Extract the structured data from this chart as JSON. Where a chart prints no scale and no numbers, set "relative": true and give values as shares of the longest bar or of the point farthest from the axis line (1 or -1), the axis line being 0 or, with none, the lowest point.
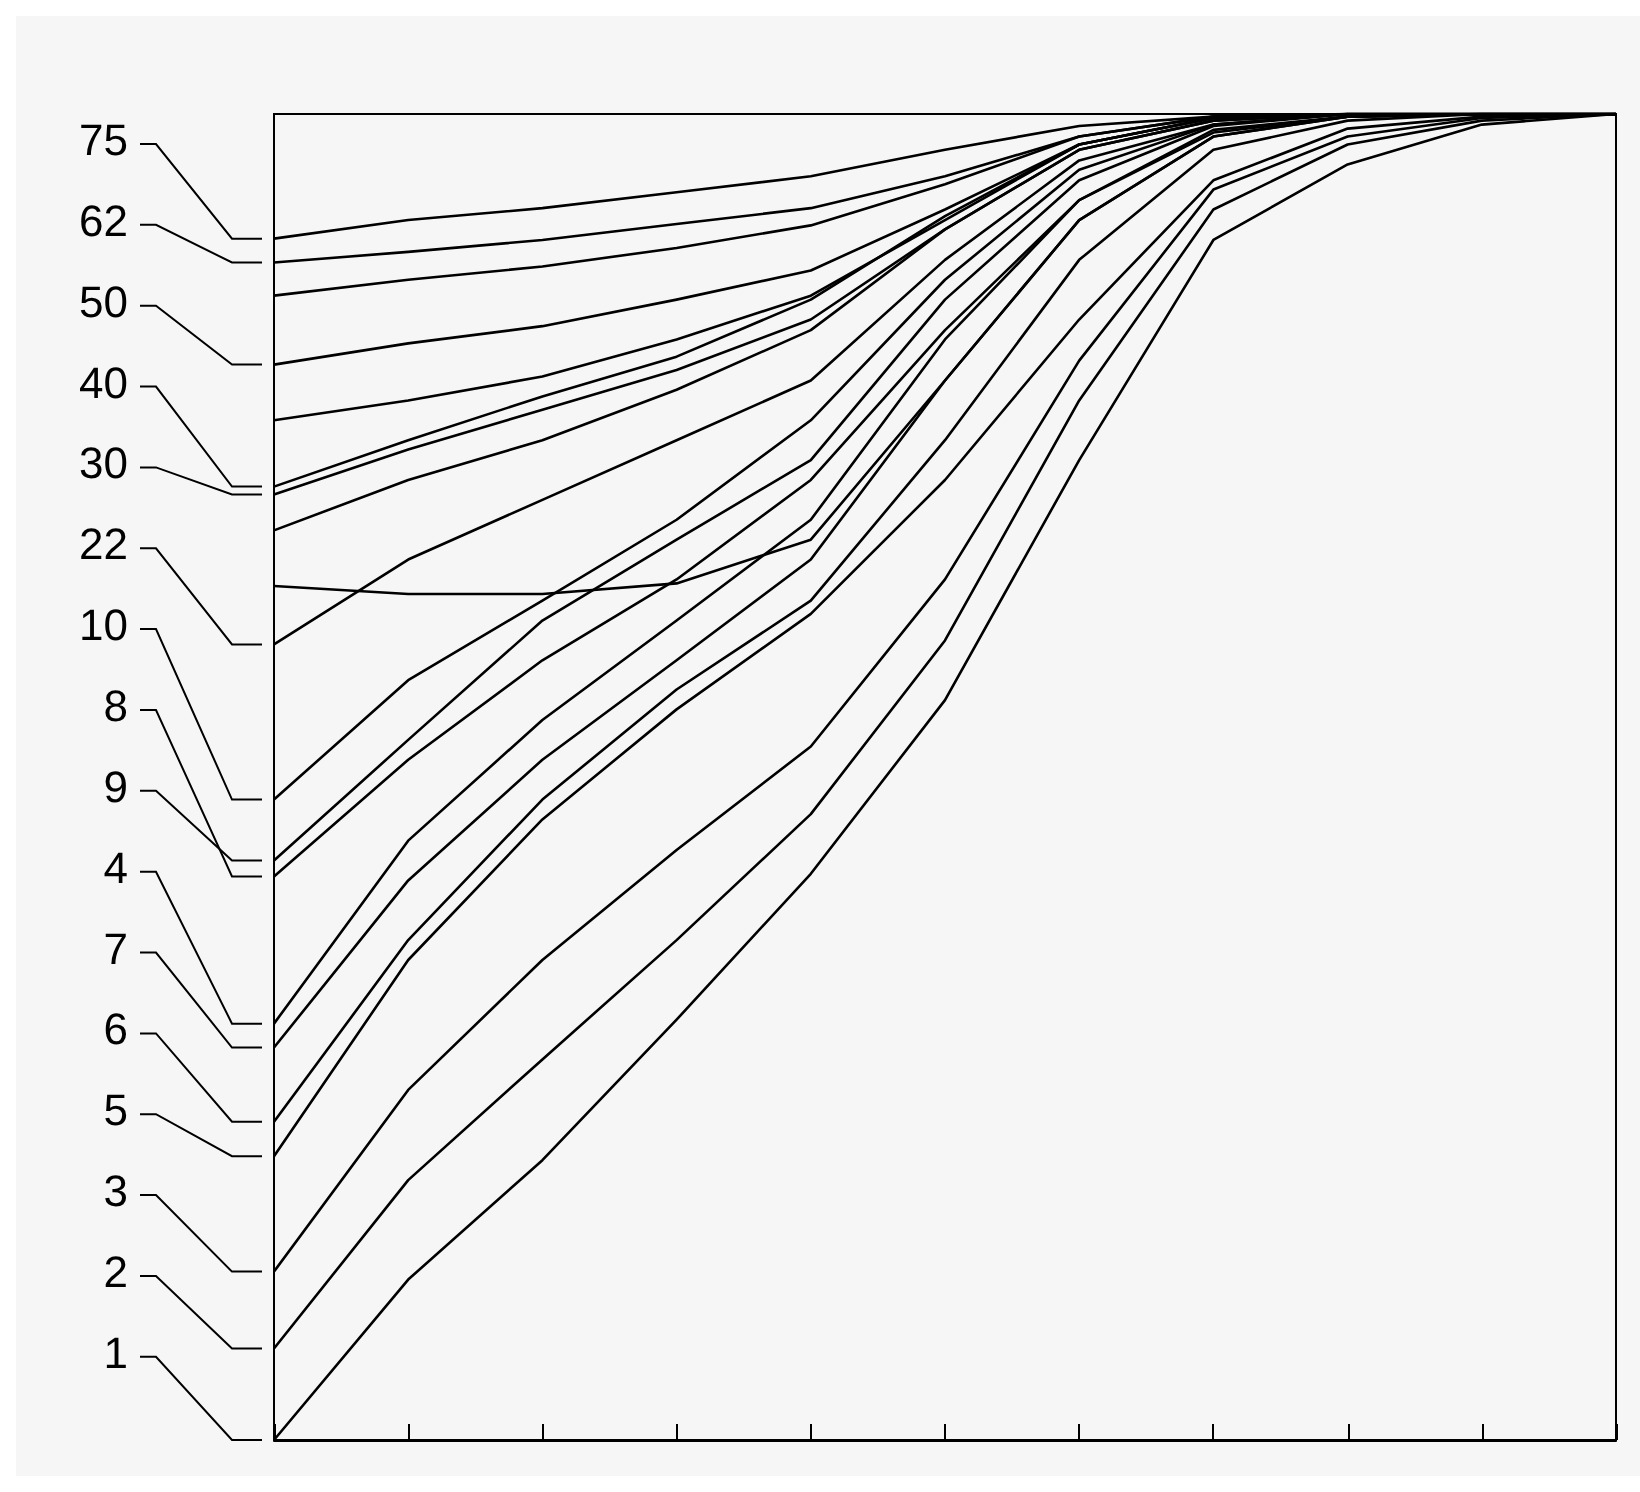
{
  "chart_data": {
    "type": "line",
    "relative": true,
    "categories": [
      null,
      null,
      null,
      null,
      null,
      null,
      null,
      null,
      null,
      null,
      null
    ],
    "legend": "left",
    "marker": "none",
    "line_style": "solid",
    "series": [
      {
        "name": "75",
        "color": "#000000",
        "values": [
          0.906,
          0.92,
          0.929,
          0.941,
          0.953,
          0.973,
          0.991,
          0.998,
          1,
          1,
          1
        ]
      },
      {
        "name": "62",
        "color": "#000000",
        "values": [
          0.888,
          0.896,
          0.905,
          0.917,
          0.929,
          0.953,
          0.983,
          0.998,
          1,
          1,
          1
        ]
      },
      {
        "name": "50",
        "color": "#000000",
        "values": [
          0.811,
          0.827,
          0.84,
          0.86,
          0.882,
          0.928,
          0.977,
          0.997,
          1,
          1,
          1
        ]
      },
      {
        "name": "40",
        "color": "#000000",
        "values": [
          0.719,
          0.754,
          0.787,
          0.817,
          0.86,
          0.923,
          0.977,
          0.997,
          1,
          1,
          1
        ]
      },
      {
        "name": "30",
        "color": "#000000",
        "values": [
          0.713,
          0.747,
          0.777,
          0.807,
          0.845,
          0.913,
          0.973,
          0.995,
          1,
          1,
          1
        ]
      },
      {
        "name": "22",
        "color": "#000000",
        "values": [
          0.6,
          0.664,
          0.709,
          0.754,
          0.799,
          0.89,
          0.965,
          0.992,
          1,
          1,
          1
        ]
      },
      {
        "name": "10",
        "color": "#000000",
        "values": [
          0.483,
          0.573,
          0.633,
          0.694,
          0.769,
          0.875,
          0.958,
          0.992,
          1,
          1,
          1
        ]
      },
      {
        "name": "8",
        "color": "#000000",
        "values": [
          0.425,
          0.513,
          0.588,
          0.649,
          0.724,
          0.837,
          0.935,
          0.986,
          0.998,
          1,
          1
        ]
      },
      {
        "name": "9",
        "color": "#000000",
        "values": [
          0.437,
          0.528,
          0.618,
          0.679,
          0.739,
          0.86,
          0.95,
          0.991,
          1,
          1,
          1
        ]
      },
      {
        "name": "4",
        "color": "#000000",
        "values": [
          0.314,
          0.452,
          0.543,
          0.618,
          0.694,
          0.83,
          0.935,
          0.988,
          0.998,
          1,
          1
        ]
      },
      {
        "name": "7",
        "color": "#000000",
        "values": [
          0.296,
          0.422,
          0.513,
          0.588,
          0.664,
          0.799,
          0.92,
          0.983,
          0.998,
          1,
          1
        ]
      },
      {
        "name": "6",
        "color": "#000000",
        "values": [
          0.24,
          0.377,
          0.483,
          0.566,
          0.633,
          0.754,
          0.89,
          0.973,
          0.995,
          1,
          1
        ]
      },
      {
        "name": "5",
        "color": "#000000",
        "values": [
          0.214,
          0.362,
          0.468,
          0.551,
          0.623,
          0.724,
          0.845,
          0.95,
          0.989,
          0.998,
          1
        ]
      },
      {
        "name": "3",
        "color": "#000000",
        "values": [
          0.127,
          0.264,
          0.362,
          0.445,
          0.523,
          0.649,
          0.814,
          0.943,
          0.983,
          0.997,
          1
        ]
      },
      {
        "name": "2",
        "color": "#000000",
        "values": [
          0.069,
          0.196,
          0.287,
          0.377,
          0.472,
          0.603,
          0.784,
          0.928,
          0.977,
          0.995,
          1
        ]
      },
      {
        "name": "1",
        "color": "#000000",
        "values": [
          0,
          0.121,
          0.211,
          0.317,
          0.427,
          0.558,
          0.739,
          0.905,
          0.962,
          0.992,
          1
        ]
      },
      {
        "color": "#000000",
        "values": [
          0.644,
          0.638,
          0.638,
          0.646,
          0.679,
          0.799,
          0.92,
          0.983,
          0.998,
          1,
          1
        ]
      },
      {
        "color": "#000000",
        "values": [
          0.686,
          0.724,
          0.754,
          0.792,
          0.837,
          0.913,
          0.973,
          0.995,
          1,
          1,
          1
        ]
      },
      {
        "color": "#000000",
        "values": [
          0.863,
          0.875,
          0.885,
          0.899,
          0.916,
          0.947,
          0.983,
          0.998,
          1,
          1,
          1
        ]
      },
      {
        "color": "#000000",
        "values": [
          0.769,
          0.784,
          0.802,
          0.83,
          0.863,
          0.92,
          0.977,
          0.997,
          1,
          1,
          1
        ]
      }
    ]
  }
}
